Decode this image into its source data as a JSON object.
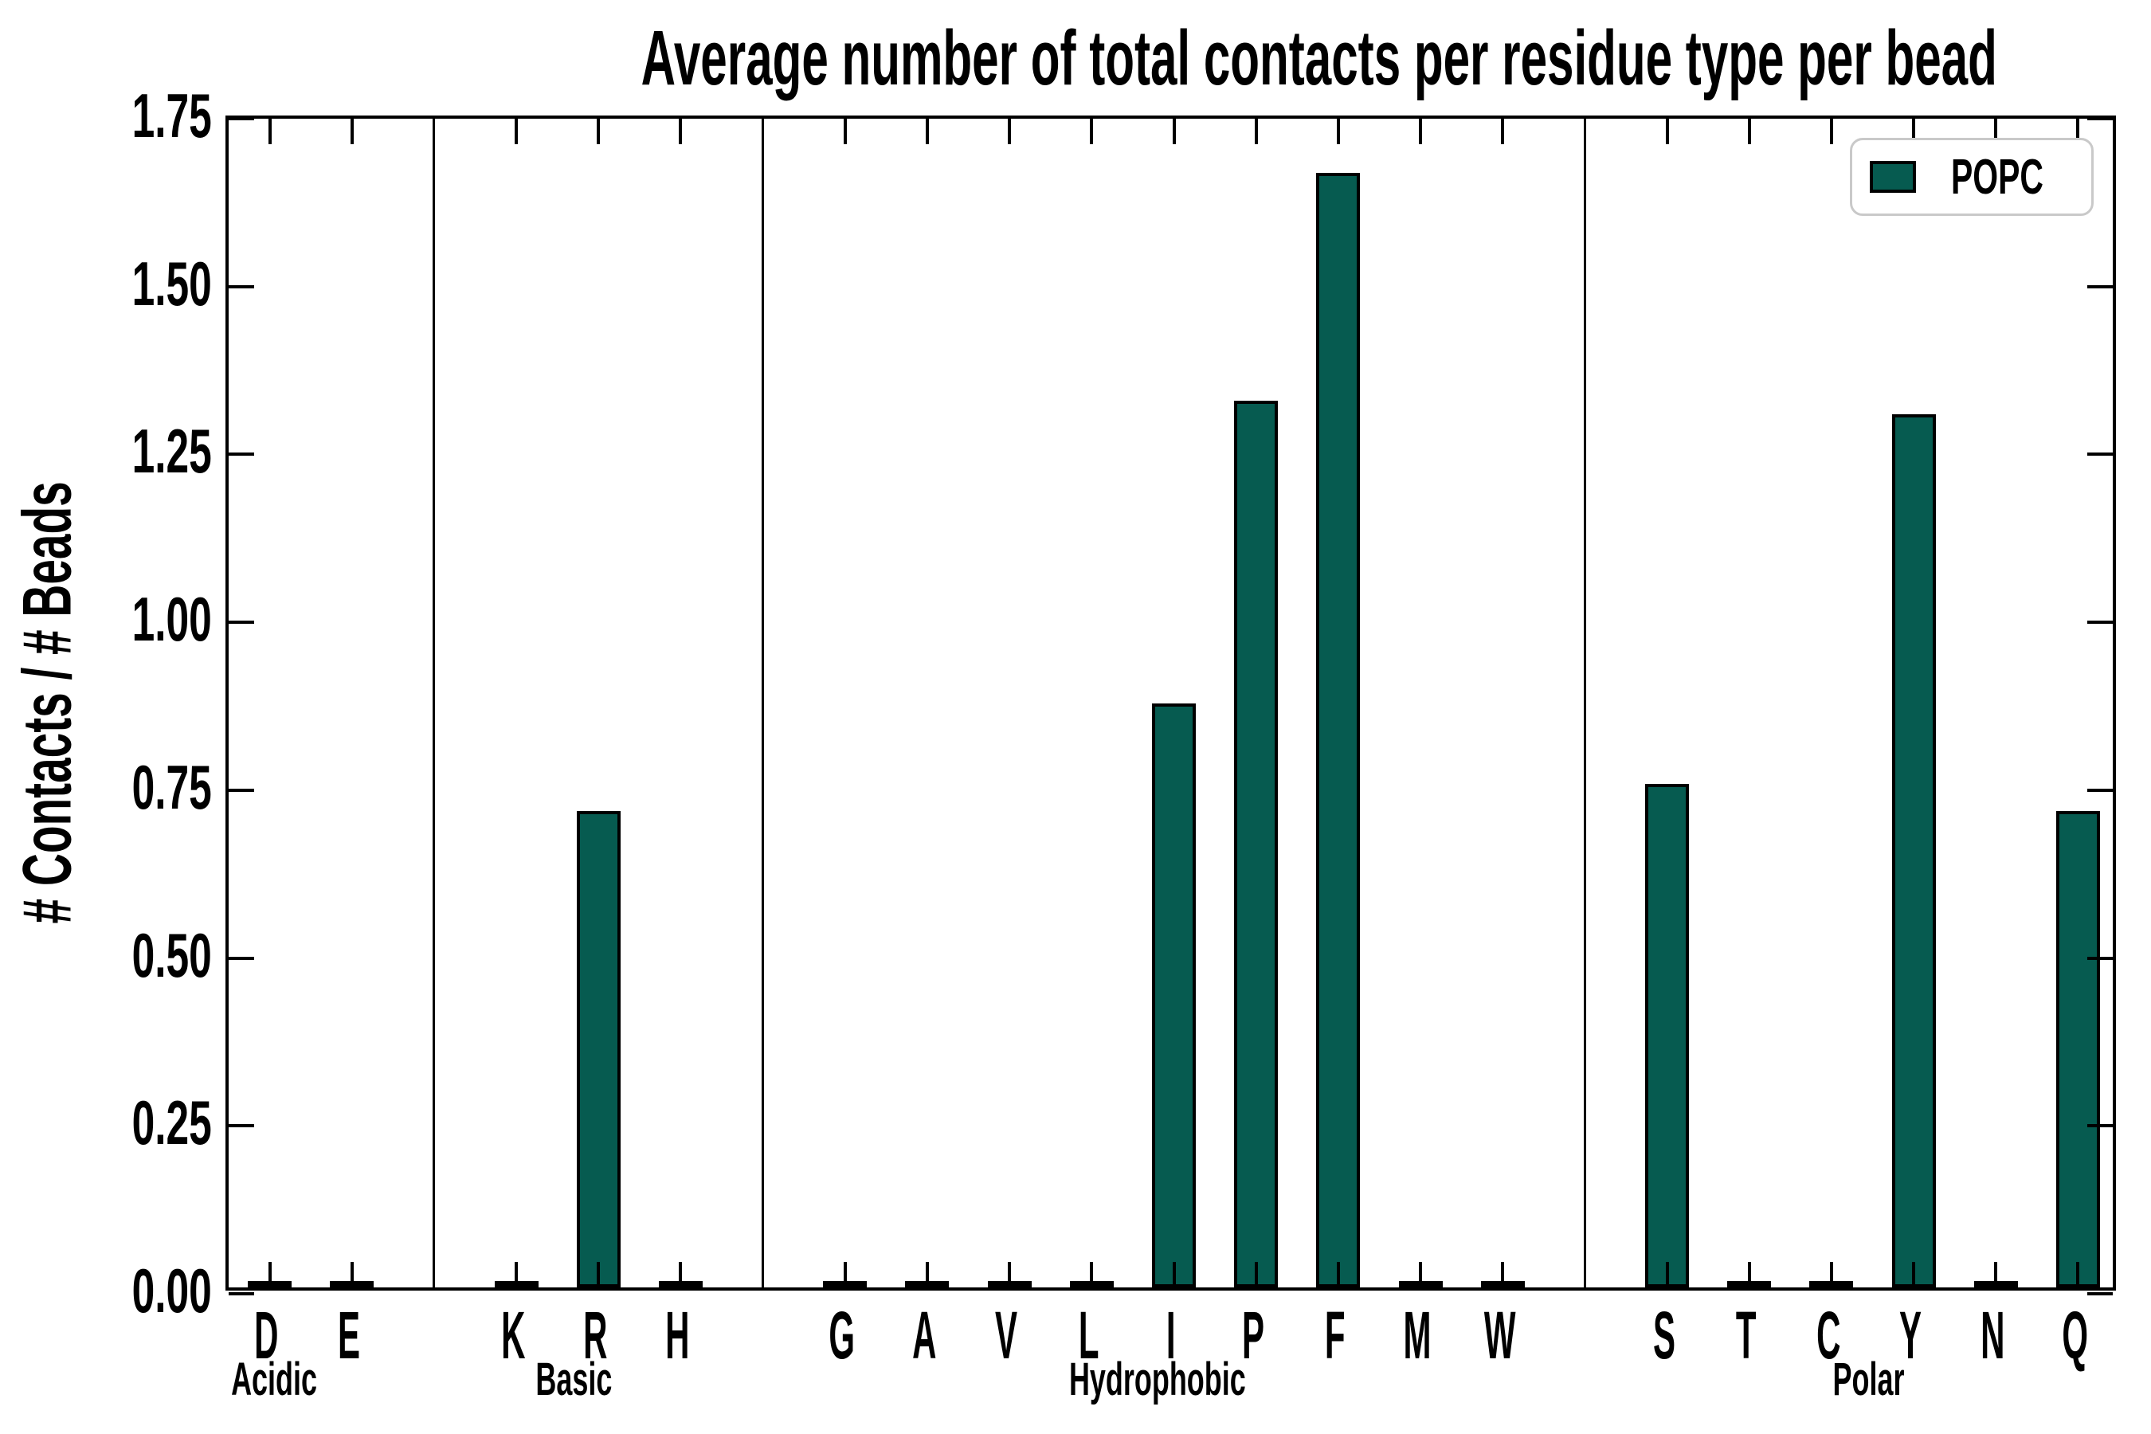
{
  "figure": {
    "title": "Average number of total contacts per residue type per bead"
  },
  "axes": {
    "ylabel": "# Contacts / # Beads",
    "ytick_labels": [
      "0.00",
      "0.25",
      "0.50",
      "0.75",
      "1.00",
      "1.25",
      "1.50",
      "1.75"
    ]
  },
  "legend": {
    "label": "POPC"
  },
  "colors": {
    "bar_fill": "#065b50",
    "bar_edge": "#000000",
    "axis": "#000000",
    "legend_border": "#c9c9c9",
    "background": "#ffffff"
  },
  "chart_data": {
    "type": "bar",
    "title": "Average number of total contacts per residue type per bead",
    "xlabel": "",
    "ylabel": "# Contacts / # Beads",
    "ylim": [
      0,
      1.75
    ],
    "yticks": [
      0.0,
      0.25,
      0.5,
      0.75,
      1.0,
      1.25,
      1.5,
      1.75
    ],
    "grid": false,
    "legend_position": "upper right",
    "categories": [
      "D",
      "E",
      "K",
      "R",
      "H",
      "G",
      "A",
      "V",
      "L",
      "I",
      "P",
      "F",
      "M",
      "W",
      "S",
      "T",
      "C",
      "Y",
      "N",
      "Q"
    ],
    "series": [
      {
        "name": "POPC",
        "color": "#065b50",
        "values": [
          0.005,
          0.005,
          0.005,
          0.71,
          0.005,
          0.005,
          0.005,
          0.005,
          0.005,
          0.87,
          1.32,
          1.66,
          0.005,
          0.005,
          0.75,
          0.005,
          0.005,
          1.3,
          0.005,
          0.71
        ]
      }
    ],
    "groups": [
      {
        "label": "Acidic",
        "residues": [
          "D",
          "E"
        ],
        "values": [
          0.005,
          0.005
        ]
      },
      {
        "label": "Basic",
        "residues": [
          "K",
          "R",
          "H"
        ],
        "values": [
          0.005,
          0.71,
          0.005
        ]
      },
      {
        "label": "Hydrophobic",
        "residues": [
          "G",
          "A",
          "V",
          "L",
          "I",
          "P",
          "F",
          "M",
          "W"
        ],
        "values": [
          0.005,
          0.005,
          0.005,
          0.005,
          0.87,
          1.32,
          1.66,
          0.005,
          0.005
        ]
      },
      {
        "label": "Polar",
        "residues": [
          "S",
          "T",
          "C",
          "Y",
          "N",
          "Q"
        ],
        "values": [
          0.75,
          0.005,
          0.005,
          1.3,
          0.005,
          0.71
        ]
      }
    ]
  }
}
